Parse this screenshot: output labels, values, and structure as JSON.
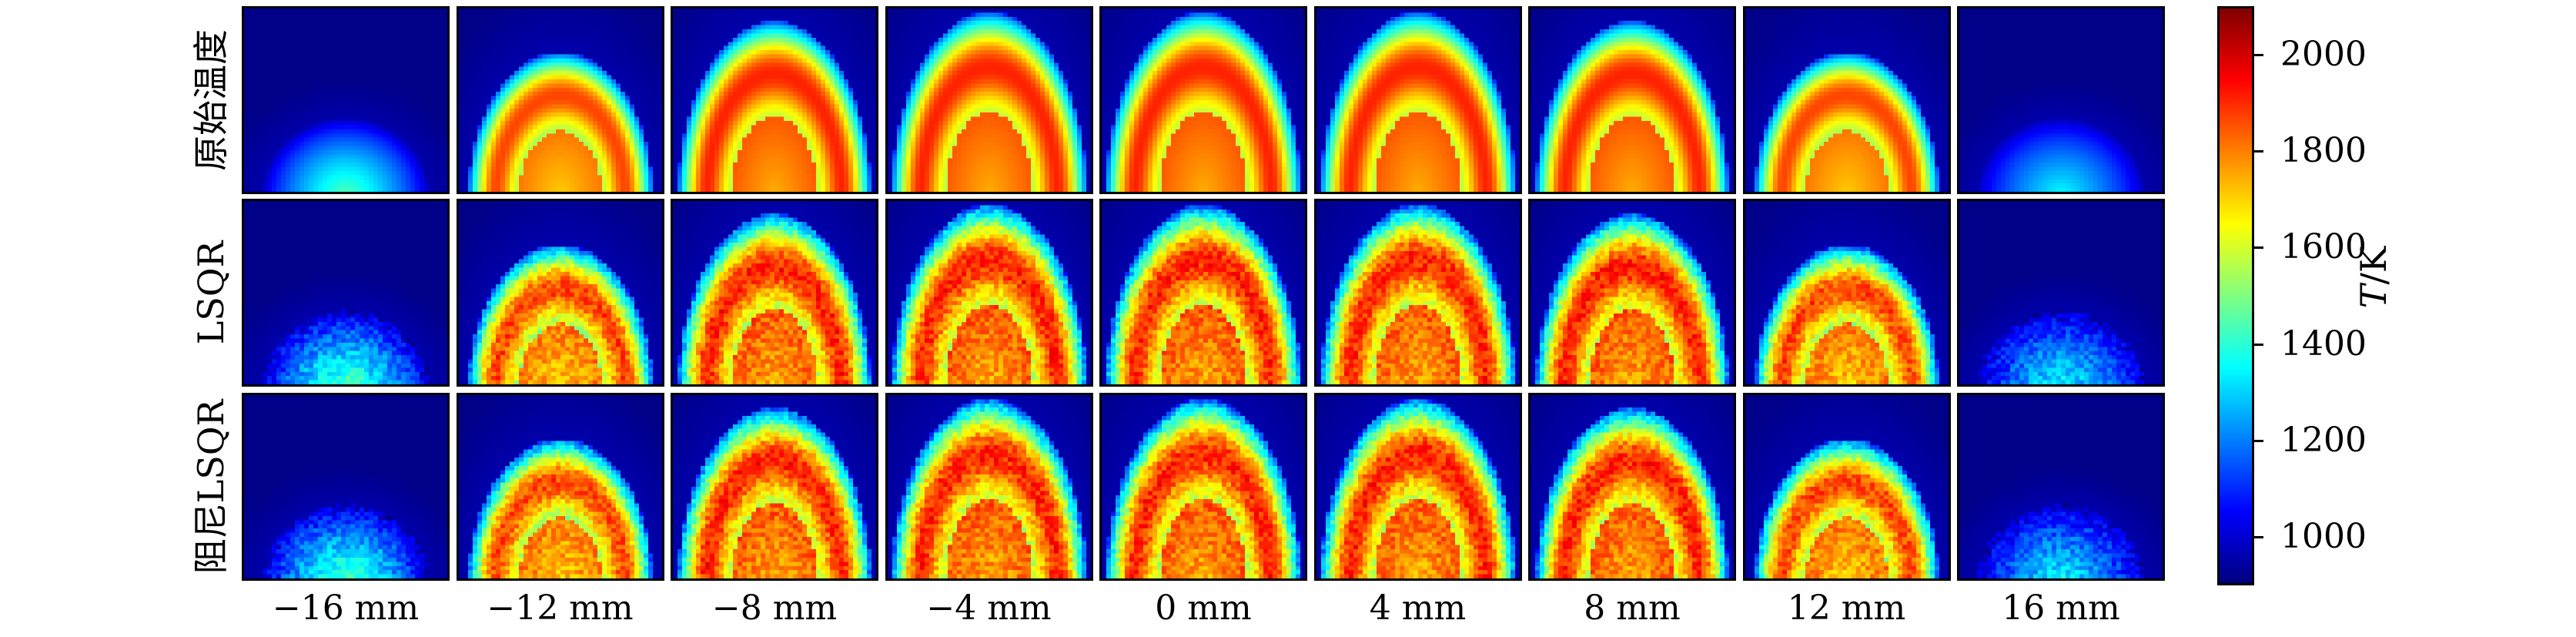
{
  "chart_data": {
    "type": "heatmap",
    "rows": [
      "原始温度",
      "LSQR",
      "阻尼LSQR"
    ],
    "columns": [
      "−16 mm",
      "−12 mm",
      "−8 mm",
      "−4 mm",
      "0 mm",
      "4 mm",
      "8 mm",
      "12 mm",
      "16 mm"
    ],
    "colorbar": {
      "label": "T/K",
      "label_italic": "T",
      "label_unit": "/K",
      "range": [
        900,
        2100
      ],
      "ticks": [
        1000,
        1200,
        1400,
        1600,
        1800,
        2000
      ],
      "colormap": "jet"
    },
    "panels": {
      "flame_height": [
        0.42,
        0.78,
        0.95,
        1.0,
        1.0,
        1.0,
        0.95,
        0.78,
        0.42
      ],
      "peak_temperature": [
        1450,
        2050,
        2100,
        2100,
        2100,
        2100,
        2100,
        2050,
        1350
      ],
      "noise_level": [
        0.0,
        0.06,
        0.06
      ]
    }
  }
}
